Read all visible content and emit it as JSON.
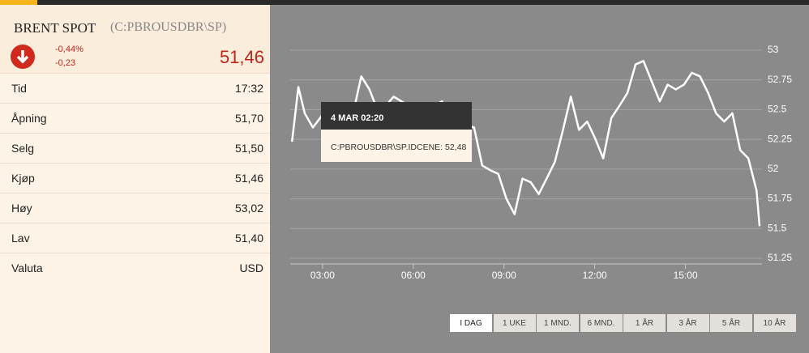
{
  "quote": {
    "name": "BRENT SPOT",
    "symbol": "(C:PBROUSDBR\\SP)",
    "change_pct": "-0,44%",
    "change": "-0,23",
    "price": "51,46",
    "rows": [
      [
        "Tid",
        "17:32"
      ],
      [
        "Åpning",
        "51,70"
      ],
      [
        "Selg",
        "51,50"
      ],
      [
        "Kjøp",
        "51,46"
      ],
      [
        "Høy",
        "53,02"
      ],
      [
        "Lav",
        "51,40"
      ],
      [
        "Valuta",
        "USD"
      ]
    ]
  },
  "chart_data": {
    "type": "line",
    "color": "#ffffff",
    "grid": true,
    "x": [
      1.99,
      2.2,
      2.41,
      2.68,
      2.95,
      3.21,
      3.48,
      3.75,
      4.01,
      4.28,
      4.55,
      4.81,
      5.08,
      5.35,
      5.61,
      5.88,
      6.15,
      6.41,
      6.68,
      6.95,
      7.21,
      7.48,
      7.75,
      8.01,
      8.28,
      8.55,
      8.81,
      9.08,
      9.35,
      9.61,
      9.88,
      10.15,
      10.41,
      10.68,
      10.95,
      11.21,
      11.48,
      11.75,
      12.01,
      12.28,
      12.55,
      12.81,
      13.08,
      13.35,
      13.61,
      13.88,
      14.15,
      14.41,
      14.68,
      14.95,
      15.21,
      15.48,
      15.75,
      16.01,
      16.28,
      16.55,
      16.81,
      17.08,
      17.35,
      17.45
    ],
    "values": [
      52.23,
      52.69,
      52.47,
      52.35,
      52.44,
      52.55,
      52.47,
      52.5,
      52.47,
      52.78,
      52.67,
      52.5,
      52.53,
      52.61,
      52.57,
      52.53,
      52.55,
      52.52,
      52.53,
      52.57,
      52.4,
      52.41,
      52.37,
      52.35,
      52.03,
      51.99,
      51.96,
      51.75,
      51.62,
      51.92,
      51.89,
      51.79,
      51.92,
      52.06,
      52.33,
      52.61,
      52.33,
      52.4,
      52.26,
      52.09,
      52.43,
      52.53,
      52.64,
      52.88,
      52.91,
      52.74,
      52.57,
      52.71,
      52.67,
      52.71,
      52.81,
      52.78,
      52.64,
      52.47,
      52.4,
      52.47,
      52.16,
      52.09,
      51.82,
      51.52
    ],
    "xlim": [
      1.93,
      17.53
    ],
    "ylim": [
      51.25,
      53
    ],
    "xticks": [
      {
        "value": 3,
        "label": "03:00"
      },
      {
        "value": 6,
        "label": "06:00"
      },
      {
        "value": 9,
        "label": "09:00"
      },
      {
        "value": 12,
        "label": "12:00"
      },
      {
        "value": 15,
        "label": "15:00"
      }
    ],
    "yticks": [
      51.25,
      51.5,
      51.75,
      52,
      52.25,
      52.5,
      52.75,
      53
    ],
    "tooltip": {
      "title": "4 MAR 02:20",
      "text": "C:PBROUSDBR\\SP.IDCENE: 52,48"
    },
    "ranges": [
      "I DAG",
      "1 UKE",
      "1 MND.",
      "6 MND.",
      "1 ÅR",
      "3 ÅR",
      "5 ÅR",
      "10 ÅR"
    ],
    "active_range": 0
  }
}
